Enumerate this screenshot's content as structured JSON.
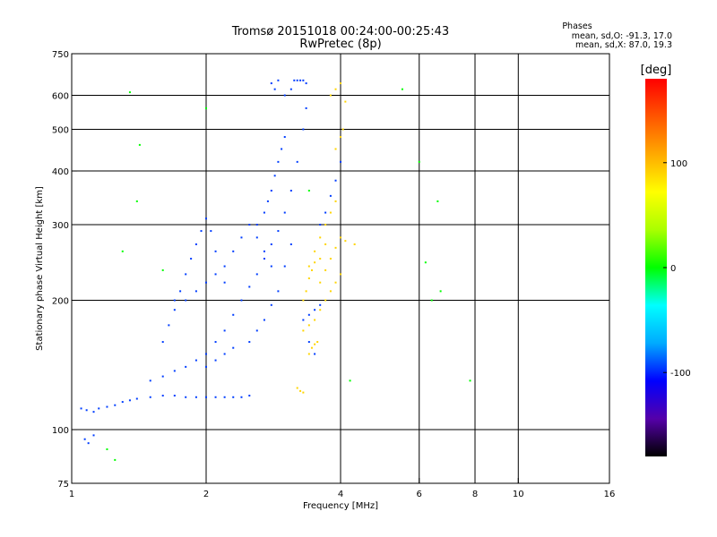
{
  "chart_data": {
    "type": "scatter",
    "title": "Tromsø 20151018 00:24:00-00:25:43",
    "subtitle": "RwPretec (8p)",
    "xlabel": "Frequency [MHz]",
    "ylabel": "Stationary phase Virtual Height [km]",
    "x_scale": "log",
    "y_scale": "log",
    "xlim": [
      1,
      16
    ],
    "ylim": [
      75,
      750
    ],
    "x_ticks": [
      1,
      2,
      4,
      6,
      8,
      10,
      16
    ],
    "x_tick_labels": [
      "1",
      "2",
      "4",
      "6",
      "8",
      "10",
      "16"
    ],
    "y_ticks": [
      75,
      100,
      200,
      300,
      400,
      500,
      600,
      750
    ],
    "y_tick_labels": [
      "75",
      "100",
      "200",
      "300",
      "400",
      "500",
      "600",
      "750"
    ],
    "grid": true,
    "grid_x": [
      2,
      4,
      6,
      8,
      10
    ],
    "grid_y": [
      100,
      200,
      300,
      400,
      500,
      600
    ],
    "stats": {
      "heading": "Phases",
      "o_line": "mean, sd,O: -91.3, 17.0",
      "x_line": "mean, sd,X: 87.0, 19.3"
    },
    "colorbar": {
      "label": "[deg]",
      "range": [
        -180,
        180
      ],
      "ticks": [
        100,
        0,
        -100
      ],
      "tick_labels": [
        "100",
        "0",
        "-100"
      ],
      "colors": [
        "#000000",
        "#5500aa",
        "#0000ff",
        "#00aaff",
        "#00ffff",
        "#00ff00",
        "#aaff00",
        "#ffff00",
        "#ffaa00",
        "#ff5500",
        "#ff0000"
      ]
    },
    "series": [
      {
        "mode": "O",
        "phase_deg": -95,
        "points": [
          [
            1.05,
            112
          ],
          [
            1.08,
            111
          ],
          [
            1.12,
            110
          ],
          [
            1.15,
            112
          ],
          [
            1.2,
            113
          ],
          [
            1.25,
            114
          ],
          [
            1.3,
            116
          ],
          [
            1.35,
            117
          ],
          [
            1.4,
            118
          ],
          [
            1.5,
            119
          ],
          [
            1.6,
            120
          ],
          [
            1.7,
            120
          ],
          [
            1.8,
            119
          ],
          [
            1.9,
            119
          ],
          [
            2.0,
            119
          ],
          [
            2.1,
            119
          ],
          [
            2.2,
            119
          ],
          [
            2.3,
            119
          ],
          [
            2.4,
            119
          ],
          [
            2.5,
            120
          ],
          [
            1.07,
            95
          ],
          [
            1.09,
            93
          ],
          [
            1.12,
            97
          ],
          [
            1.5,
            130
          ],
          [
            1.6,
            133
          ],
          [
            1.7,
            137
          ],
          [
            1.8,
            140
          ],
          [
            1.9,
            145
          ],
          [
            2.0,
            150
          ],
          [
            2.1,
            160
          ],
          [
            2.2,
            170
          ],
          [
            2.3,
            185
          ],
          [
            2.4,
            200
          ],
          [
            2.5,
            215
          ],
          [
            2.6,
            230
          ],
          [
            2.7,
            250
          ],
          [
            2.8,
            270
          ],
          [
            2.9,
            290
          ],
          [
            3.0,
            320
          ],
          [
            3.1,
            360
          ],
          [
            3.2,
            420
          ],
          [
            3.3,
            500
          ],
          [
            3.35,
            560
          ],
          [
            1.7,
            200
          ],
          [
            1.75,
            210
          ],
          [
            1.8,
            230
          ],
          [
            1.85,
            250
          ],
          [
            1.9,
            270
          ],
          [
            1.95,
            290
          ],
          [
            2.0,
            310
          ],
          [
            2.05,
            290
          ],
          [
            2.1,
            260
          ],
          [
            2.2,
            240
          ],
          [
            2.0,
            140
          ],
          [
            2.1,
            145
          ],
          [
            2.2,
            150
          ],
          [
            2.3,
            155
          ],
          [
            2.5,
            160
          ],
          [
            2.6,
            170
          ],
          [
            2.7,
            180
          ],
          [
            2.8,
            195
          ],
          [
            2.9,
            210
          ],
          [
            3.0,
            240
          ],
          [
            3.1,
            270
          ],
          [
            2.6,
            300
          ],
          [
            2.7,
            320
          ],
          [
            2.75,
            340
          ],
          [
            2.8,
            360
          ],
          [
            2.85,
            390
          ],
          [
            2.9,
            420
          ],
          [
            2.95,
            450
          ],
          [
            3.0,
            480
          ],
          [
            1.6,
            160
          ],
          [
            1.65,
            175
          ],
          [
            1.7,
            190
          ],
          [
            1.8,
            200
          ],
          [
            1.9,
            210
          ],
          [
            2.0,
            220
          ],
          [
            2.1,
            230
          ],
          [
            2.2,
            220
          ],
          [
            2.3,
            260
          ],
          [
            2.4,
            280
          ],
          [
            2.5,
            300
          ],
          [
            2.6,
            280
          ],
          [
            2.7,
            260
          ],
          [
            2.8,
            240
          ],
          [
            3.0,
            600
          ],
          [
            3.1,
            620
          ],
          [
            3.15,
            650
          ],
          [
            3.2,
            650
          ],
          [
            3.25,
            650
          ],
          [
            3.3,
            650
          ],
          [
            3.35,
            640
          ],
          [
            2.8,
            640
          ],
          [
            2.85,
            620
          ],
          [
            2.9,
            650
          ],
          [
            3.3,
            180
          ],
          [
            3.4,
            185
          ],
          [
            3.5,
            190
          ],
          [
            3.6,
            195
          ],
          [
            3.4,
            160
          ],
          [
            3.5,
            150
          ],
          [
            3.6,
            300
          ],
          [
            3.7,
            320
          ],
          [
            3.8,
            350
          ],
          [
            3.9,
            380
          ],
          [
            4.0,
            420
          ]
        ]
      },
      {
        "mode": "X",
        "phase_deg": 90,
        "points": [
          [
            3.3,
            170
          ],
          [
            3.4,
            175
          ],
          [
            3.5,
            180
          ],
          [
            3.6,
            190
          ],
          [
            3.7,
            200
          ],
          [
            3.8,
            210
          ],
          [
            3.9,
            220
          ],
          [
            4.0,
            230
          ],
          [
            3.4,
            240
          ],
          [
            3.5,
            260
          ],
          [
            3.6,
            280
          ],
          [
            3.7,
            300
          ],
          [
            3.8,
            320
          ],
          [
            3.9,
            340
          ],
          [
            3.6,
            250
          ],
          [
            3.7,
            270
          ],
          [
            3.3,
            200
          ],
          [
            3.35,
            210
          ],
          [
            3.4,
            225
          ],
          [
            3.45,
            235
          ],
          [
            3.5,
            245
          ],
          [
            3.6,
            220
          ],
          [
            3.7,
            235
          ],
          [
            3.8,
            250
          ],
          [
            3.9,
            265
          ],
          [
            4.0,
            280
          ],
          [
            4.1,
            275
          ],
          [
            4.3,
            270
          ],
          [
            3.4,
            150
          ],
          [
            3.45,
            155
          ],
          [
            3.5,
            158
          ],
          [
            3.55,
            160
          ],
          [
            3.2,
            125
          ],
          [
            3.25,
            123
          ],
          [
            3.3,
            122
          ],
          [
            3.8,
            600
          ],
          [
            3.9,
            620
          ],
          [
            4.0,
            640
          ],
          [
            4.1,
            580
          ],
          [
            3.9,
            450
          ],
          [
            4.0,
            480
          ],
          [
            4.05,
            500
          ]
        ]
      },
      {
        "mode": "noise",
        "phase_deg": 0,
        "points": [
          [
            1.35,
            610
          ],
          [
            1.42,
            460
          ],
          [
            1.4,
            340
          ],
          [
            1.3,
            260
          ],
          [
            1.6,
            235
          ],
          [
            1.2,
            90
          ],
          [
            1.25,
            85
          ],
          [
            6.0,
            420
          ],
          [
            6.2,
            245
          ],
          [
            6.6,
            340
          ],
          [
            6.7,
            210
          ],
          [
            6.4,
            200
          ],
          [
            5.5,
            620
          ],
          [
            4.2,
            130
          ],
          [
            7.8,
            130
          ],
          [
            3.4,
            360
          ],
          [
            2.0,
            560
          ]
        ]
      }
    ]
  }
}
